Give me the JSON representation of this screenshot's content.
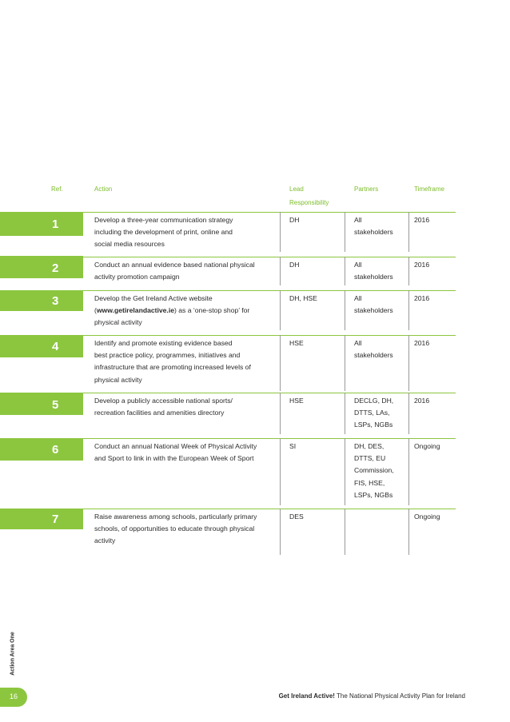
{
  "table": {
    "headers": {
      "ref": "Ref.",
      "action": "Action",
      "lead_1": "Lead",
      "lead_2": "Responsibility",
      "partners": "Partners",
      "timeframe": "Timeframe"
    },
    "rows": [
      {
        "ref": "1",
        "action": [
          "Develop a three-year communication strategy",
          "including the development of print, online and",
          "social media resources"
        ],
        "lead": [
          "DH"
        ],
        "partners": [
          "All",
          "stakeholders"
        ],
        "timeframe": [
          "2016"
        ]
      },
      {
        "ref": "2",
        "action": [
          "Conduct an annual evidence based national physical",
          "activity promotion campaign"
        ],
        "lead": [
          "DH"
        ],
        "partners": [
          "All",
          "stakeholders"
        ],
        "timeframe": [
          "2016"
        ]
      },
      {
        "ref": "3",
        "action_line1": "Develop the Get Ireland Active website",
        "action_line2_pre": "(",
        "action_line2_link": "www.getirelandactive.ie",
        "action_line2_post": ") as a ‘one-stop shop’ for",
        "action_line3": "physical activity",
        "lead": [
          "DH, HSE"
        ],
        "partners": [
          "All",
          "stakeholders"
        ],
        "timeframe": [
          "2016"
        ]
      },
      {
        "ref": "4",
        "action": [
          "Identify and promote existing evidence based",
          "best practice policy, programmes, initiatives and",
          "infrastructure that are promoting increased levels of",
          "physical activity"
        ],
        "lead": [
          "HSE"
        ],
        "partners": [
          "All",
          "stakeholders"
        ],
        "timeframe": [
          "2016"
        ]
      },
      {
        "ref": "5",
        "action": [
          "Develop a publicly accessible national sports/",
          "recreation facilities and amenities directory"
        ],
        "lead": [
          "HSE"
        ],
        "partners": [
          "DECLG, DH,",
          "DTTS, LAs,",
          "LSPs, NGBs"
        ],
        "timeframe": [
          "2016"
        ]
      },
      {
        "ref": "6",
        "action": [
          "Conduct an annual National Week of Physical Activity",
          "and Sport to link in with the European Week of Sport"
        ],
        "lead": [
          "SI"
        ],
        "partners": [
          "DH, DES,",
          "DTTS, EU",
          "Commission,",
          "FIS, HSE,",
          "LSPs, NGBs"
        ],
        "timeframe": [
          "Ongoing"
        ]
      },
      {
        "ref": "7",
        "action": [
          "Raise awareness among schools, particularly primary",
          "schools, of opportunities to educate through physical",
          "activity"
        ],
        "lead": [
          "DES"
        ],
        "partners": [],
        "timeframe": [
          "Ongoing"
        ]
      }
    ]
  },
  "sidebar_label": "Action Area One",
  "page_number": "16",
  "footer": {
    "brand": "Get Ireland Active!",
    "text": " The National Physical Activity Plan for Ireland"
  },
  "colors": {
    "accent": "#8cc63f",
    "header_text": "#7cbd2a"
  }
}
